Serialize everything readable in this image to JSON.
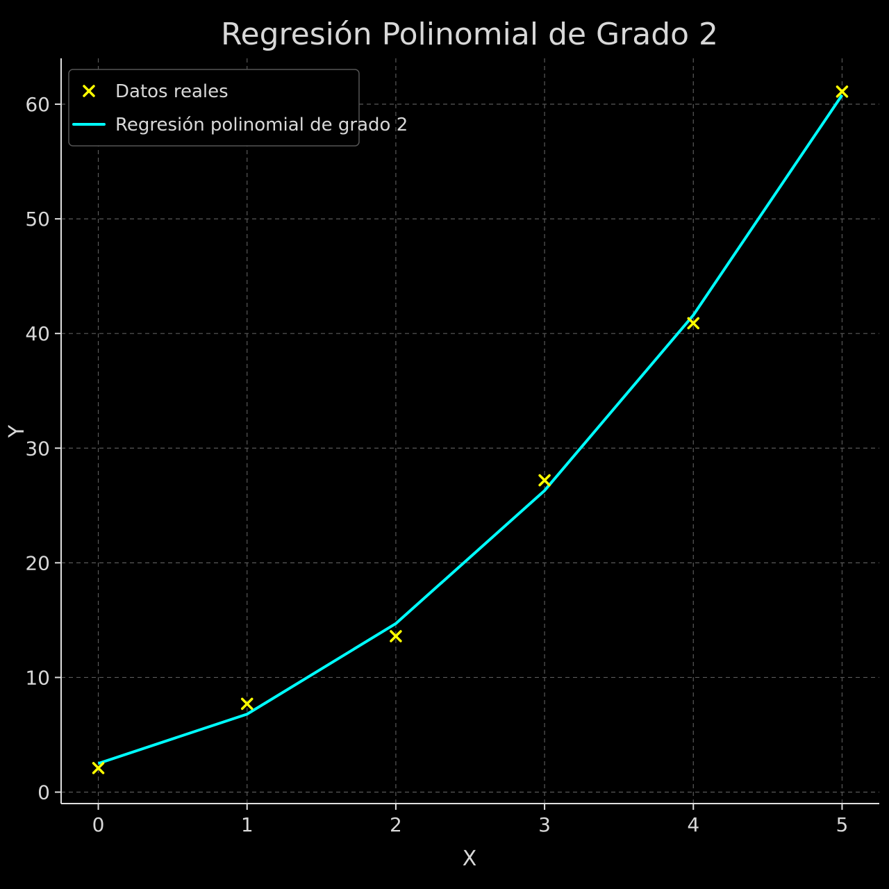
{
  "chart_data": {
    "type": "scatter",
    "title": "Regresión Polinomial de Grado 2",
    "xlabel": "X",
    "ylabel": "Y",
    "xlim": [
      -0.25,
      5.25
    ],
    "ylim": [
      -1,
      64
    ],
    "xticks": [
      0,
      1,
      2,
      3,
      4,
      5
    ],
    "yticks": [
      0,
      10,
      20,
      30,
      40,
      50,
      60
    ],
    "grid": true,
    "legend_position": "top-left",
    "series": [
      {
        "name": "Datos reales",
        "kind": "scatter",
        "marker": "x",
        "color": "#ffff00",
        "x": [
          0,
          1,
          2,
          3,
          4,
          5
        ],
        "y": [
          2.1,
          7.7,
          13.6,
          27.2,
          40.9,
          61.1
        ]
      },
      {
        "name": "Regresión polinomial de grado 2",
        "kind": "line",
        "color": "#00ffff",
        "x": [
          0,
          1,
          2,
          3,
          4,
          5
        ],
        "y": [
          2.5,
          6.8,
          14.7,
          26.3,
          41.6,
          60.8
        ]
      }
    ]
  }
}
